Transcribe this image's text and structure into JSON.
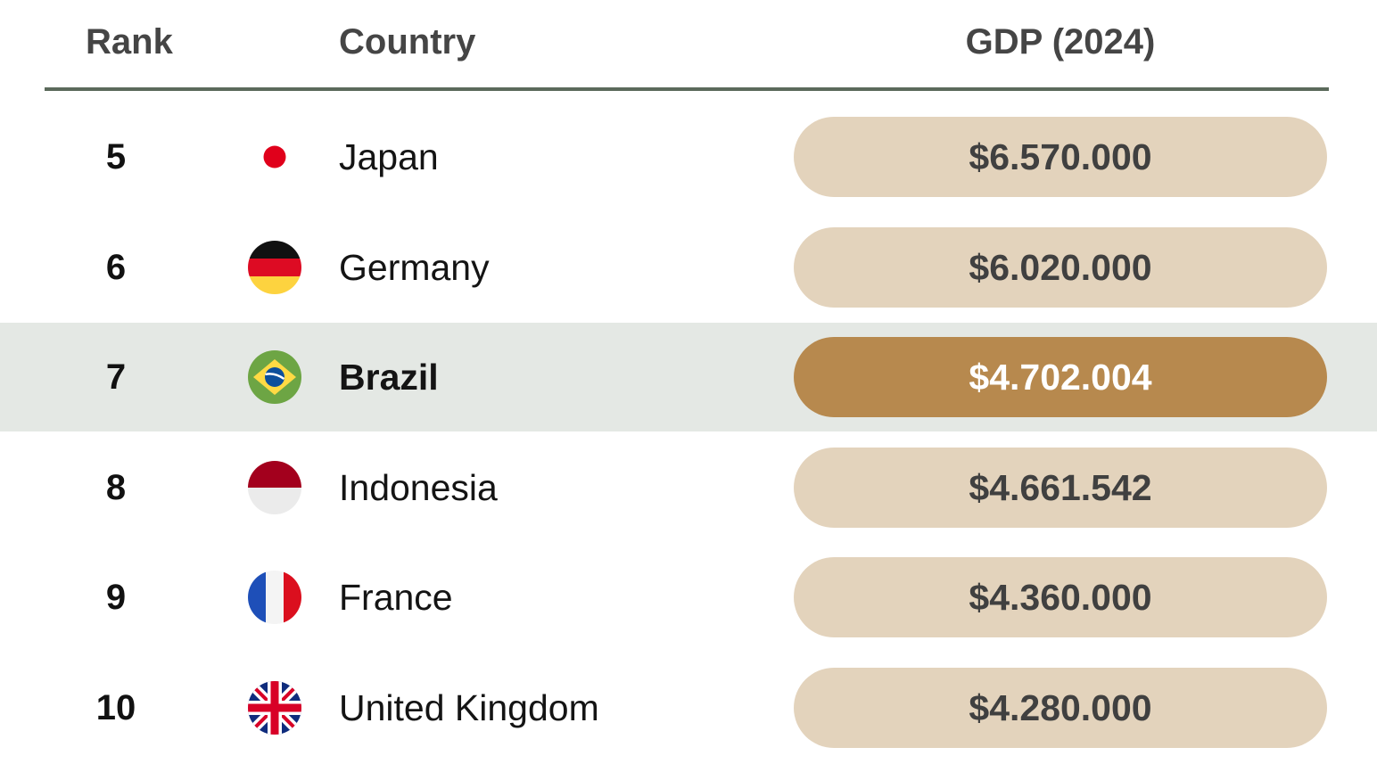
{
  "chart_data": {
    "type": "table",
    "title": "",
    "columns": [
      "Rank",
      "Country",
      "GDP (2024)"
    ],
    "rows": [
      {
        "rank": "5",
        "country": "Japan",
        "flag": "japan-flag-icon",
        "gdp": "$6.570.000",
        "value": 6570000,
        "highlight": false
      },
      {
        "rank": "6",
        "country": "Germany",
        "flag": "germany-flag-icon",
        "gdp": "$6.020.000",
        "value": 6020000,
        "highlight": false
      },
      {
        "rank": "7",
        "country": "Brazil",
        "flag": "brazil-flag-icon",
        "gdp": "$4.702.004",
        "value": 4702004,
        "highlight": true
      },
      {
        "rank": "8",
        "country": "Indonesia",
        "flag": "indonesia-flag-icon",
        "gdp": "$4.661.542",
        "value": 4661542,
        "highlight": false
      },
      {
        "rank": "9",
        "country": "France",
        "flag": "france-flag-icon",
        "gdp": "$4.360.000",
        "value": 4360000,
        "highlight": false
      },
      {
        "rank": "10",
        "country": "United Kingdom",
        "flag": "united-kingdom-flag-icon",
        "gdp": "$4.280.000",
        "value": 4280000,
        "highlight": false
      }
    ]
  },
  "colors": {
    "header_text": "#454545",
    "rule": "#5b6a5b",
    "pill": "#e3d3bc",
    "pill_highlight": "#b7894e",
    "row_highlight": "#e4e8e4"
  }
}
